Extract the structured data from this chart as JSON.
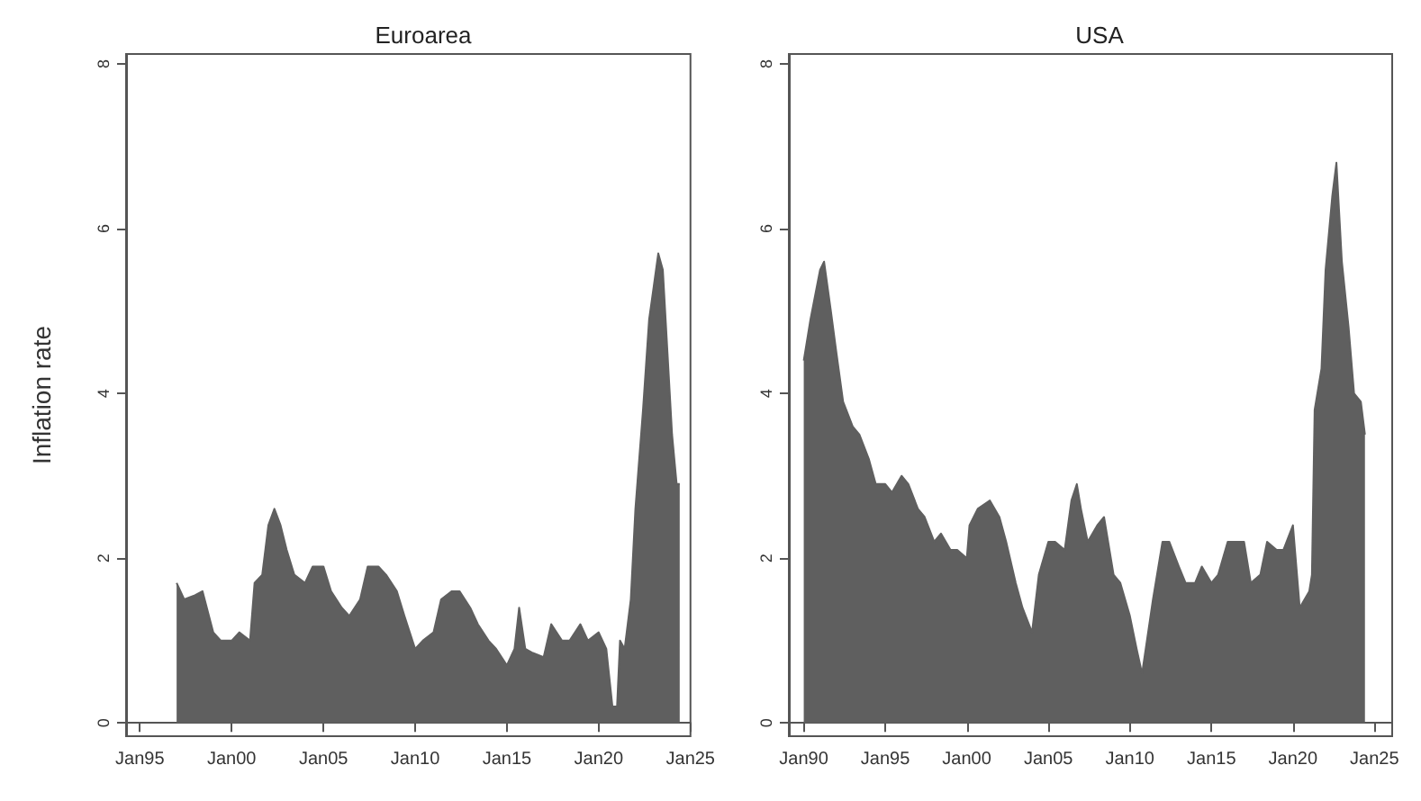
{
  "chart_data": [
    {
      "type": "area",
      "title": "Euroarea",
      "ylabel": "Inflation rate",
      "marker": "none",
      "xlim": [
        "1994-04",
        "2025-01"
      ],
      "ylim": [
        -0.16,
        8.12
      ],
      "yticks": [
        0,
        2,
        4,
        6,
        8
      ],
      "xticks": [
        {
          "value": "1995-01",
          "label": "Jan95"
        },
        {
          "value": "2000-01",
          "label": "Jan00"
        },
        {
          "value": "2005-01",
          "label": "Jan05"
        },
        {
          "value": "2010-01",
          "label": "Jan10"
        },
        {
          "value": "2015-01",
          "label": "Jan15"
        },
        {
          "value": "2020-01",
          "label": "Jan20"
        },
        {
          "value": "2025-01",
          "label": "Jan25"
        }
      ],
      "x": [
        "1997-01",
        "1997-06",
        "1998-01",
        "1998-06",
        "1999-01",
        "1999-06",
        "2000-01",
        "2000-06",
        "2001-01",
        "2001-04",
        "2001-09",
        "2002-01",
        "2002-05",
        "2002-09",
        "2003-01",
        "2003-06",
        "2004-01",
        "2004-06",
        "2005-01",
        "2005-06",
        "2006-01",
        "2006-06",
        "2007-01",
        "2007-06",
        "2008-01",
        "2008-06",
        "2009-01",
        "2009-06",
        "2010-01",
        "2010-06",
        "2011-01",
        "2011-06",
        "2012-01",
        "2012-06",
        "2013-01",
        "2013-06",
        "2014-01",
        "2014-06",
        "2015-01",
        "2015-06",
        "2015-09",
        "2016-01",
        "2016-06",
        "2017-01",
        "2017-06",
        "2018-01",
        "2018-06",
        "2019-01",
        "2019-06",
        "2020-01",
        "2020-06",
        "2020-10",
        "2021-01",
        "2021-03",
        "2021-06",
        "2021-10",
        "2022-01",
        "2022-06",
        "2022-10",
        "2023-01",
        "2023-04",
        "2023-07",
        "2023-10",
        "2024-01",
        "2024-04",
        "2024-06"
      ],
      "series": [
        {
          "color": "#5f5f5f",
          "values": [
            1.7,
            1.5,
            1.55,
            1.6,
            1.1,
            1.0,
            1.0,
            1.1,
            1.0,
            1.7,
            1.8,
            2.4,
            2.6,
            2.4,
            2.1,
            1.8,
            1.7,
            1.9,
            1.9,
            1.6,
            1.4,
            1.3,
            1.5,
            1.9,
            1.9,
            1.8,
            1.6,
            1.3,
            0.9,
            1.0,
            1.1,
            1.5,
            1.6,
            1.6,
            1.4,
            1.2,
            1.0,
            0.9,
            0.7,
            0.9,
            1.4,
            0.9,
            0.85,
            0.8,
            1.2,
            1.0,
            1.0,
            1.2,
            1.0,
            1.1,
            0.9,
            0.2,
            0.2,
            1.0,
            0.9,
            1.5,
            2.6,
            3.8,
            4.9,
            5.3,
            5.7,
            5.5,
            4.5,
            3.5,
            2.9,
            2.9
          ]
        }
      ]
    },
    {
      "type": "area",
      "title": "USA",
      "marker": "none",
      "xlim": [
        "1989-02",
        "2026-02"
      ],
      "ylim": [
        -0.16,
        8.12
      ],
      "yticks": [
        0,
        2,
        4,
        6,
        8
      ],
      "xticks": [
        {
          "value": "1990-01",
          "label": "Jan90"
        },
        {
          "value": "1995-01",
          "label": "Jan95"
        },
        {
          "value": "2000-01",
          "label": "Jan00"
        },
        {
          "value": "2005-01",
          "label": "Jan05"
        },
        {
          "value": "2010-01",
          "label": "Jan10"
        },
        {
          "value": "2015-01",
          "label": "Jan15"
        },
        {
          "value": "2020-01",
          "label": "Jan20"
        },
        {
          "value": "2025-01",
          "label": "Jan25"
        }
      ],
      "x": [
        "1990-01",
        "1990-06",
        "1991-01",
        "1991-04",
        "1991-09",
        "1992-01",
        "1992-06",
        "1993-01",
        "1993-06",
        "1994-01",
        "1994-06",
        "1995-01",
        "1995-06",
        "1996-01",
        "1996-06",
        "1997-01",
        "1997-06",
        "1998-01",
        "1998-06",
        "1999-01",
        "1999-06",
        "2000-01",
        "2000-03",
        "2000-09",
        "2001-06",
        "2002-01",
        "2002-06",
        "2003-01",
        "2003-06",
        "2004-01",
        "2004-06",
        "2005-01",
        "2005-06",
        "2006-01",
        "2006-06",
        "2006-10",
        "2007-01",
        "2007-06",
        "2008-01",
        "2008-06",
        "2009-01",
        "2009-06",
        "2010-01",
        "2010-06",
        "2010-10",
        "2011-06",
        "2012-01",
        "2012-06",
        "2013-01",
        "2013-06",
        "2014-01",
        "2014-06",
        "2015-01",
        "2015-06",
        "2016-01",
        "2016-06",
        "2017-01",
        "2017-06",
        "2018-01",
        "2018-06",
        "2019-01",
        "2019-06",
        "2020-01",
        "2020-06",
        "2021-01",
        "2021-03",
        "2021-05",
        "2021-10",
        "2022-01",
        "2022-06",
        "2022-09",
        "2023-01",
        "2023-06",
        "2023-10",
        "2024-03",
        "2024-06"
      ],
      "series": [
        {
          "color": "#5f5f5f",
          "values": [
            4.4,
            4.9,
            5.5,
            5.6,
            5.0,
            4.5,
            3.9,
            3.6,
            3.5,
            3.2,
            2.9,
            2.9,
            2.8,
            3.0,
            2.9,
            2.6,
            2.5,
            2.2,
            2.3,
            2.1,
            2.1,
            2.0,
            2.4,
            2.6,
            2.7,
            2.5,
            2.2,
            1.7,
            1.4,
            1.1,
            1.8,
            2.2,
            2.2,
            2.1,
            2.7,
            2.9,
            2.6,
            2.2,
            2.4,
            2.5,
            1.8,
            1.7,
            1.3,
            0.9,
            0.6,
            1.5,
            2.2,
            2.2,
            1.9,
            1.7,
            1.7,
            1.9,
            1.7,
            1.8,
            2.2,
            2.2,
            2.2,
            1.7,
            1.8,
            2.2,
            2.1,
            2.1,
            2.4,
            1.4,
            1.6,
            1.8,
            3.8,
            4.3,
            5.5,
            6.4,
            6.8,
            5.6,
            4.8,
            4.0,
            3.9,
            3.5
          ]
        }
      ]
    }
  ]
}
